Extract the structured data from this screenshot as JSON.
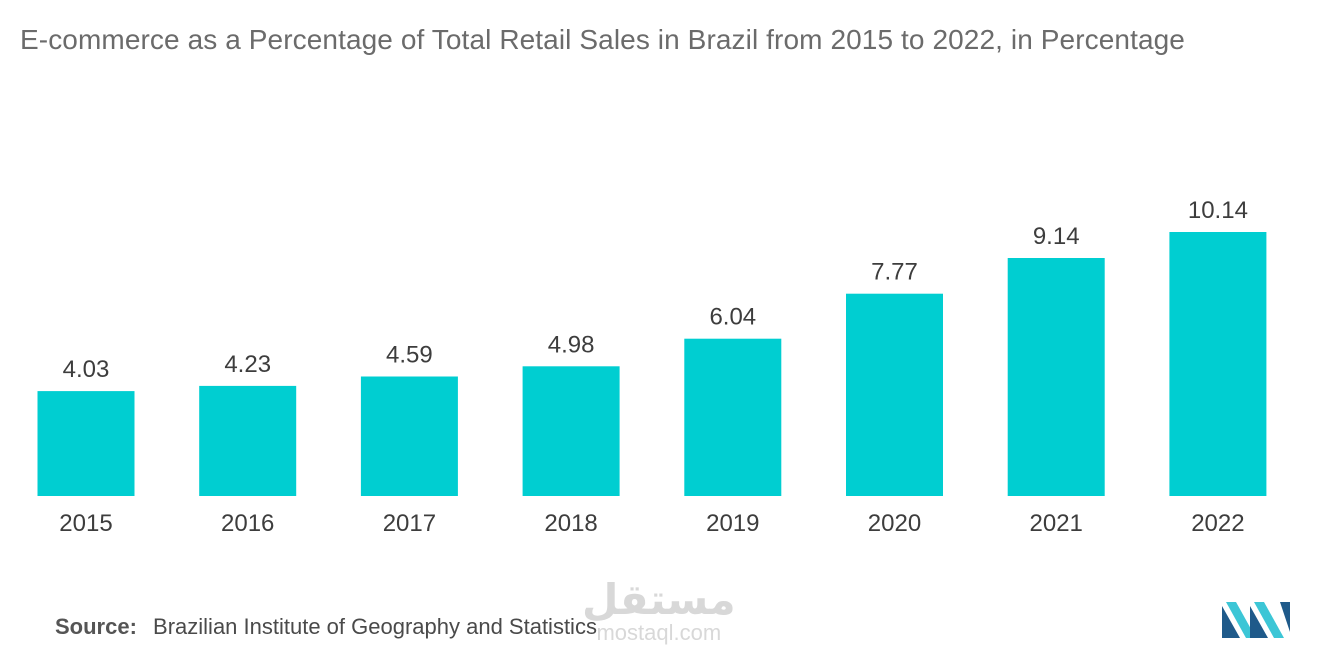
{
  "title": "E-commerce as a Percentage of Total Retail Sales in Brazil from 2015 to 2022, in Percentage",
  "source": {
    "label": "Source:",
    "text": "Brazilian Institute of Geography and Statistics"
  },
  "watermark": {
    "arabic": "مستقل",
    "latin": "mostaql.com"
  },
  "colors": {
    "bar": "#00ced1",
    "text": "#3d3d3d",
    "logo_dark": "#1f5a8a",
    "logo_light": "#3cc6d6"
  },
  "chart_data": {
    "type": "bar",
    "title": "E-commerce as a Percentage of Total Retail Sales in Brazil from 2015 to 2022, in Percentage",
    "categories": [
      "2015",
      "2016",
      "2017",
      "2018",
      "2019",
      "2020",
      "2021",
      "2022"
    ],
    "values": [
      4.03,
      4.23,
      4.59,
      4.98,
      6.04,
      7.77,
      9.14,
      10.14
    ],
    "value_labels": [
      "4.03",
      "4.23",
      "4.59",
      "4.98",
      "6.04",
      "7.77",
      "9.14",
      "10.14"
    ],
    "xlabel": "",
    "ylabel": "",
    "ylim": [
      0,
      10.14
    ],
    "grid": false,
    "legend": "none"
  }
}
